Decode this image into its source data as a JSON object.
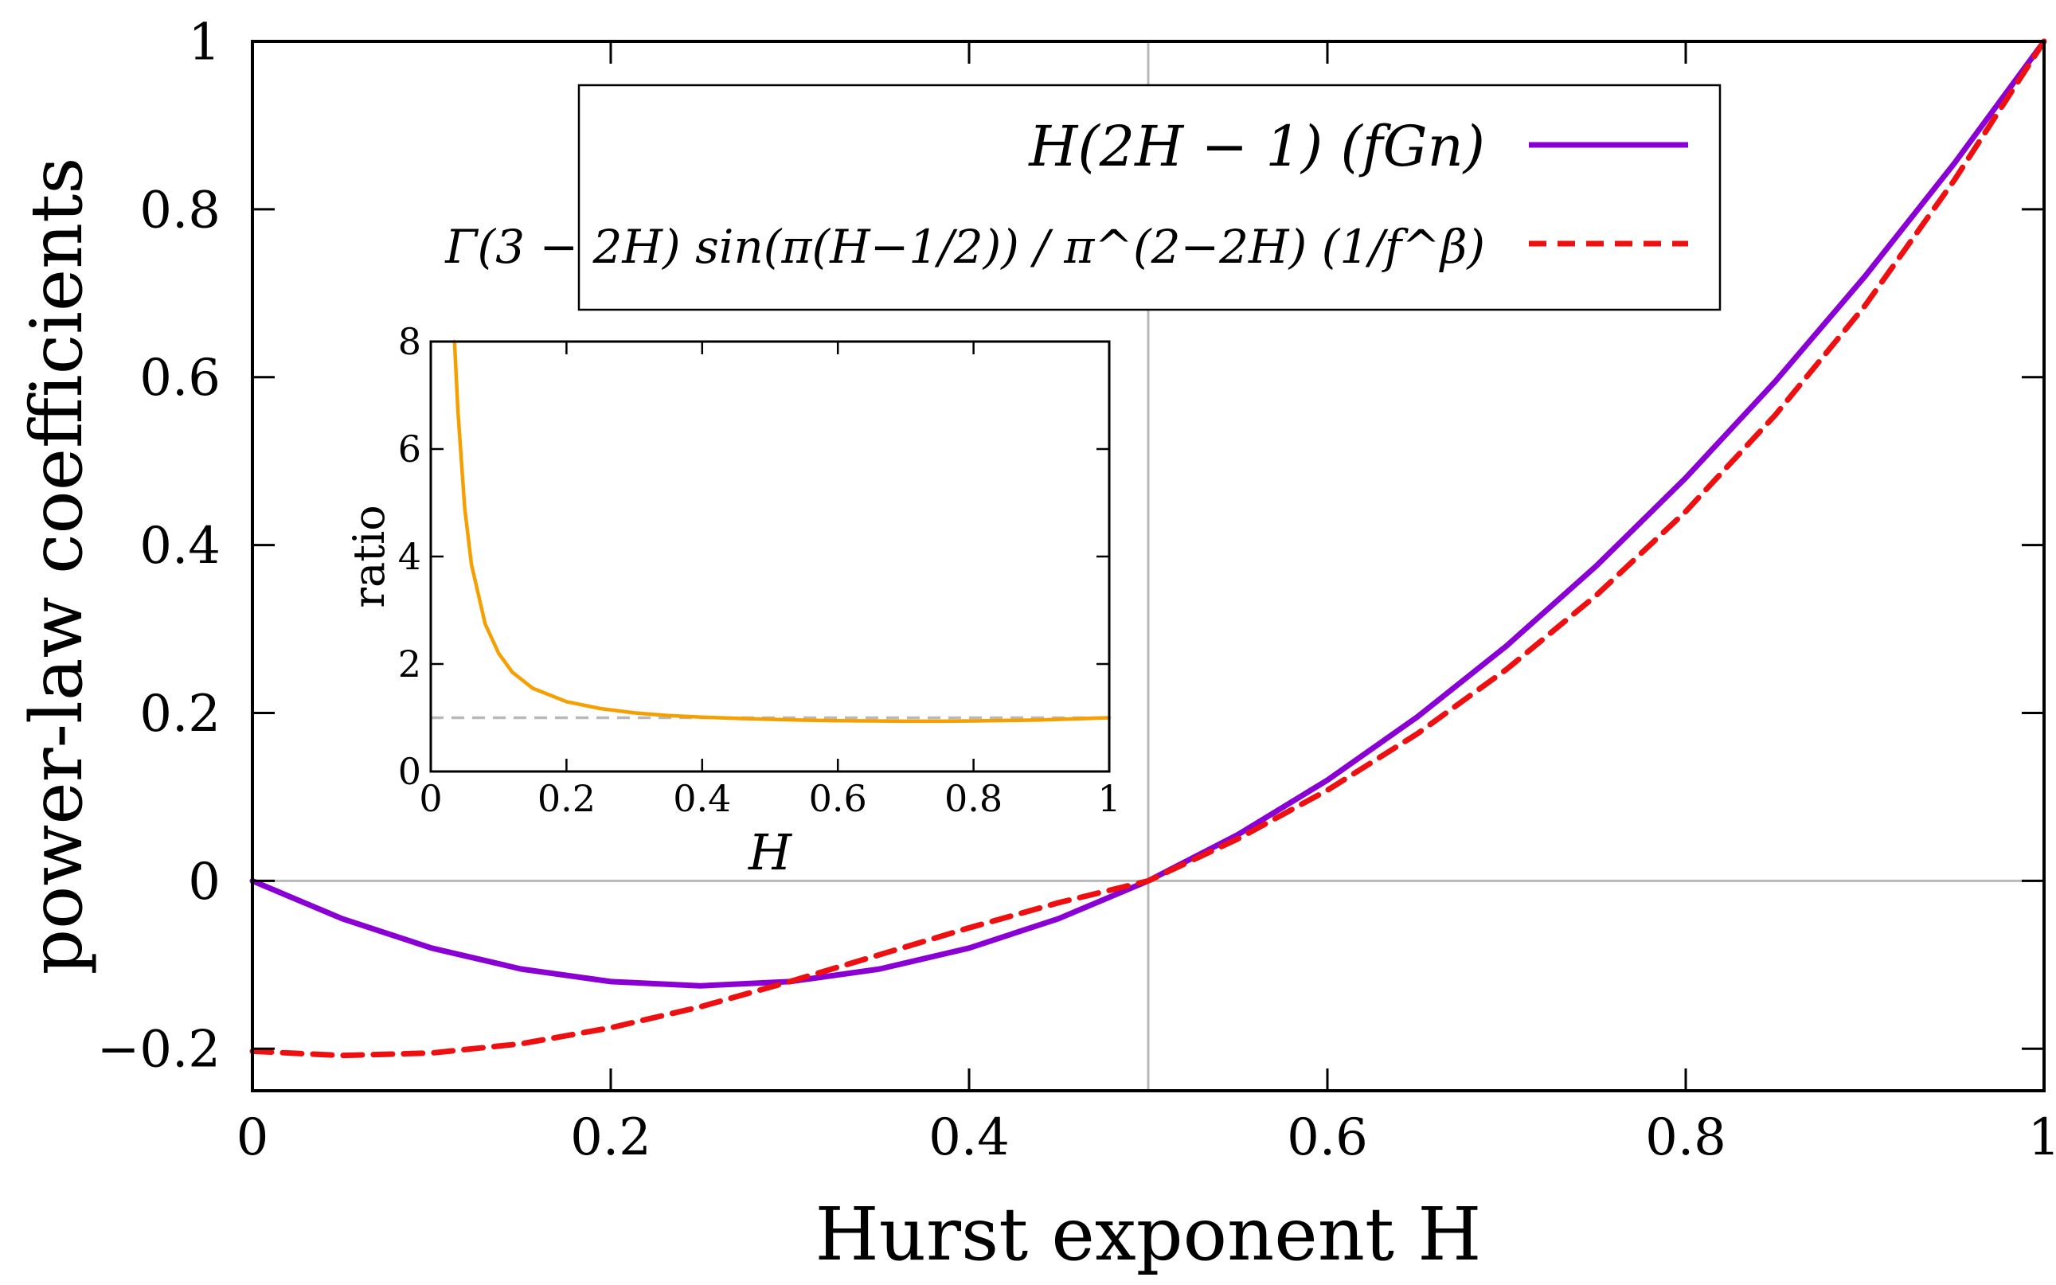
{
  "colors": {
    "fgn": "#8a00d4",
    "onef": "#ee1010",
    "ratio": "#f5a000",
    "ref": "#b9b9b9",
    "axes": "#000000"
  },
  "chart_data": [
    {
      "id": "main",
      "type": "line",
      "xlabel": "Hurst exponent H",
      "ylabel": "power-law coefficients",
      "xlim": [
        0,
        1
      ],
      "ylim": [
        -0.25,
        1
      ],
      "x_ticks": [
        0,
        0.2,
        0.4,
        0.6,
        0.8,
        1
      ],
      "x_tick_labels": [
        "0",
        "0.2",
        "0.4",
        "0.6",
        "0.8",
        "1"
      ],
      "y_ticks": [
        -0.2,
        0,
        0.2,
        0.4,
        0.6,
        0.8,
        1
      ],
      "y_tick_labels": [
        "−0.2",
        "0",
        "0.2",
        "0.4",
        "0.6",
        "0.8",
        "1"
      ],
      "reference_lines": {
        "x": 0.5,
        "y": 0
      },
      "legend_position": "top-center",
      "x": [
        0,
        0.05,
        0.1,
        0.15,
        0.2,
        0.25,
        0.3,
        0.35,
        0.4,
        0.45,
        0.5,
        0.55,
        0.6,
        0.65,
        0.7,
        0.75,
        0.8,
        0.85,
        0.9,
        0.95,
        1
      ],
      "series": [
        {
          "name": "H(2H − 1) (fGn)",
          "style": "solid",
          "values": [
            0,
            -0.045,
            -0.08,
            -0.105,
            -0.12,
            -0.125,
            -0.12,
            -0.105,
            -0.08,
            -0.045,
            0,
            0.055,
            0.12,
            0.195,
            0.28,
            0.375,
            0.48,
            0.595,
            0.72,
            0.855,
            1
          ]
        },
        {
          "name": "Γ(3 − 2H) sin(π(H−1/2)) / π^(2−2H) (1/f^β)",
          "style": "dashed",
          "values": [
            -0.203,
            -0.208,
            -0.205,
            -0.194,
            -0.175,
            -0.15,
            -0.12,
            -0.088,
            -0.056,
            -0.026,
            0,
            0.05,
            0.108,
            0.175,
            0.252,
            0.34,
            0.44,
            0.555,
            0.685,
            0.835,
            1
          ]
        }
      ]
    },
    {
      "id": "inset",
      "type": "line",
      "xlabel": "H",
      "ylabel": "ratio",
      "xlim": [
        0,
        1
      ],
      "ylim": [
        0,
        8
      ],
      "x_ticks": [
        0,
        0.2,
        0.4,
        0.6,
        0.8,
        1
      ],
      "x_tick_labels": [
        "0",
        "0.2",
        "0.4",
        "0.6",
        "0.8",
        "1"
      ],
      "y_ticks": [
        0,
        2,
        4,
        6,
        8
      ],
      "y_tick_labels": [
        "0",
        "2",
        "4",
        "6",
        "8"
      ],
      "reference_lines": {
        "y": 1
      },
      "x": [
        0.035,
        0.04,
        0.05,
        0.06,
        0.08,
        0.1,
        0.12,
        0.15,
        0.2,
        0.25,
        0.3,
        0.35,
        0.4,
        0.45,
        0.5,
        0.55,
        0.6,
        0.65,
        0.7,
        0.75,
        0.8,
        0.85,
        0.9,
        0.95,
        1
      ],
      "series": [
        {
          "name": "ratio",
          "style": "solid",
          "values": [
            8.0,
            6.7,
            4.9,
            3.85,
            2.75,
            2.2,
            1.85,
            1.55,
            1.3,
            1.17,
            1.09,
            1.04,
            1.01,
            0.99,
            0.97,
            0.955,
            0.945,
            0.94,
            0.935,
            0.935,
            0.94,
            0.95,
            0.96,
            0.98,
            1.0
          ]
        }
      ]
    }
  ]
}
